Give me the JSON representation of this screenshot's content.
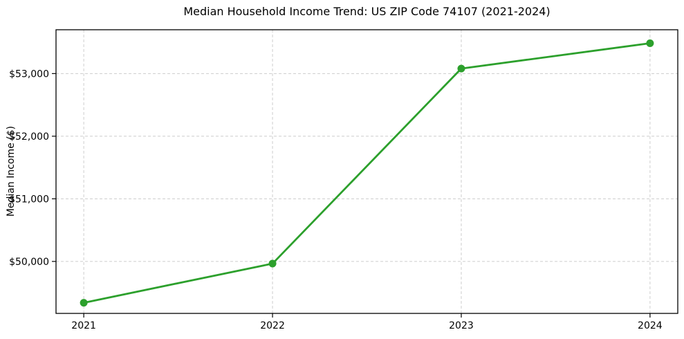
{
  "chart_data": {
    "type": "line",
    "title": "Median Household Income Trend: US ZIP Code 74107 (2021-2024)",
    "xlabel": "",
    "ylabel": "Median Income ($)",
    "x": [
      2021,
      2022,
      2023,
      2024
    ],
    "x_tick_labels": [
      "2021",
      "2022",
      "2023",
      "2024"
    ],
    "series": [
      {
        "name": "Median Household Income",
        "values": [
          49340,
          49965,
          53080,
          53485
        ]
      }
    ],
    "y_ticks": [
      50000,
      51000,
      52000,
      53000
    ],
    "y_tick_labels": [
      "$50,000",
      "$51,000",
      "$52,000",
      "$53,000"
    ],
    "xlim": [
      2020.853,
      2024.147
    ],
    "ylim": [
      49170,
      53700
    ],
    "grid": true,
    "grid_style": "dashed",
    "legend": null,
    "line_color": "#2ca02c",
    "grid_color": "#cccccc",
    "axis_color": "#000000",
    "marker": "circle"
  }
}
